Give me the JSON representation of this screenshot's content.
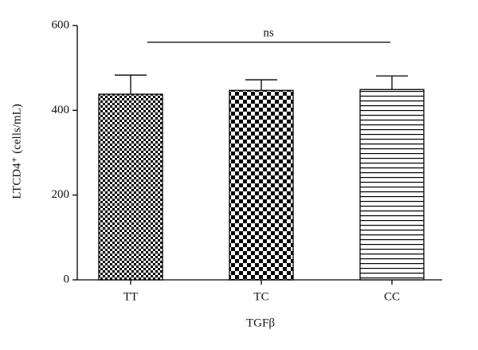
{
  "chart_data": {
    "type": "bar",
    "y_label": "LTCD4⁺ (cells/mL)",
    "x_label": "TGFβ",
    "annotation": "ns",
    "categories": [
      "TT",
      "TC",
      "CC"
    ],
    "values": [
      438,
      447,
      449
    ],
    "errors": [
      45,
      25,
      32
    ],
    "patterns": [
      "fine-checker",
      "checker",
      "hlines"
    ],
    "ylim": [
      0,
      600
    ],
    "yticks": [
      0,
      200,
      400,
      600
    ]
  }
}
